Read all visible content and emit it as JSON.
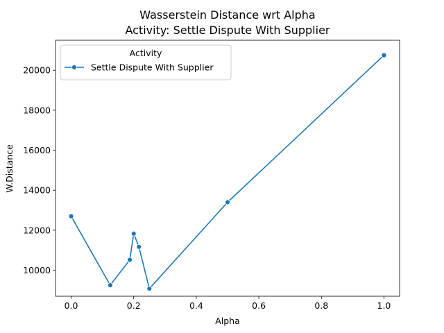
{
  "chart_data": {
    "type": "line",
    "title": "Wasserstein Distance wrt Alpha",
    "subtitle": "Activity: Settle Dispute With Supplier",
    "xlabel": "Alpha",
    "ylabel": "W.Distance",
    "xlim": [
      -0.05,
      1.05
    ],
    "ylim": [
      8700,
      21500
    ],
    "xticks": [
      0.0,
      0.2,
      0.4,
      0.6,
      0.8,
      1.0
    ],
    "xtick_labels": [
      "0.0",
      "0.2",
      "0.4",
      "0.6",
      "0.8",
      "1.0"
    ],
    "yticks": [
      10000,
      12000,
      14000,
      16000,
      18000,
      20000
    ],
    "ytick_labels": [
      "10000",
      "12000",
      "14000",
      "16000",
      "18000",
      "20000"
    ],
    "grid": false,
    "legend": {
      "title": "Activity",
      "placement": "top-left"
    },
    "series": [
      {
        "name": "Settle Dispute With Supplier",
        "color": "#1f77b4",
        "marker": "circle",
        "x": [
          0.0,
          0.125,
          0.1875,
          0.2,
          0.2167,
          0.25,
          0.5,
          1.0
        ],
        "y": [
          12700,
          9250,
          10520,
          11830,
          11170,
          9080,
          13400,
          20750
        ]
      }
    ]
  }
}
